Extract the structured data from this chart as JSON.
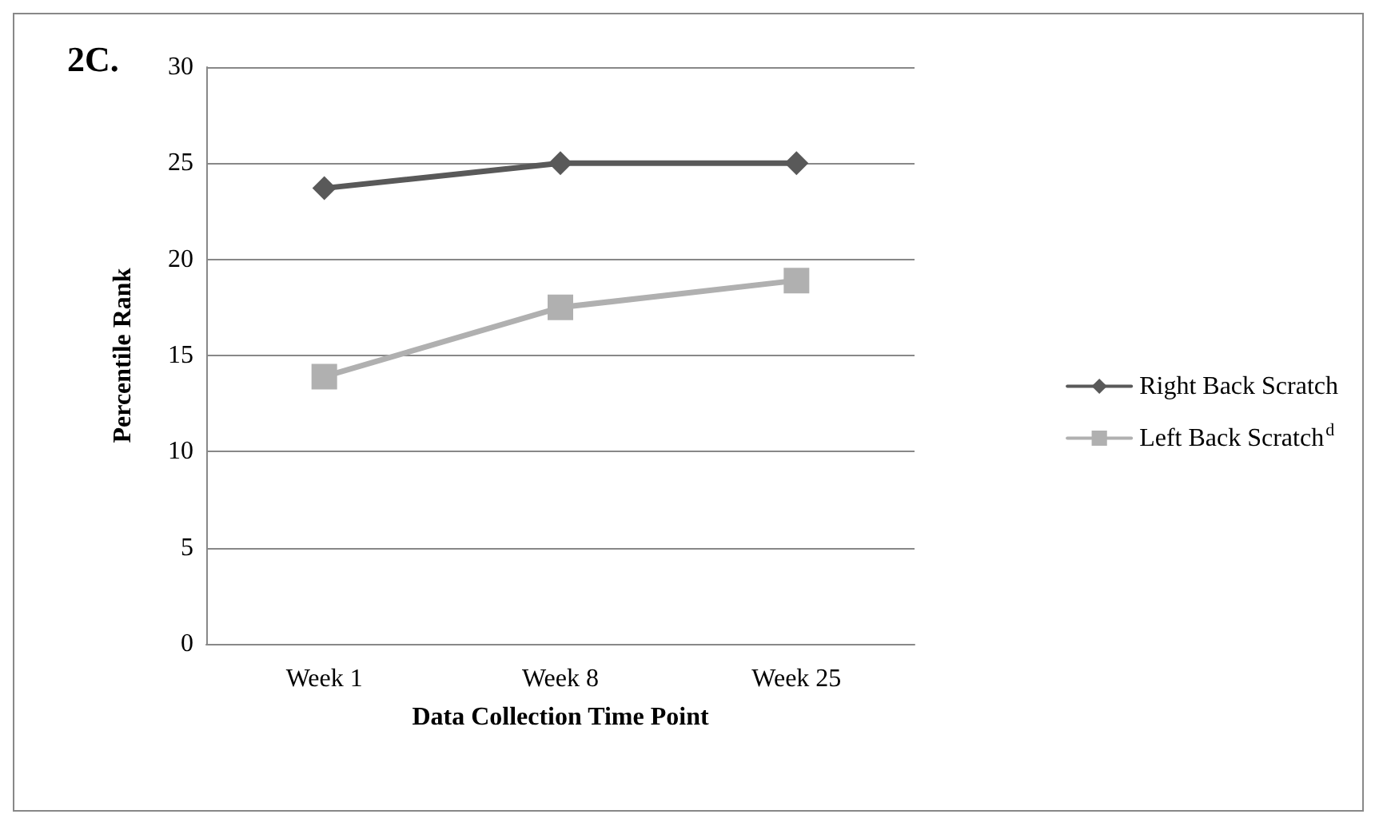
{
  "chart_data": {
    "type": "line",
    "title": "2C.",
    "xlabel": "Data Collection Time Point",
    "ylabel": "Percentile Rank",
    "categories": [
      "Week 1",
      "Week 8",
      "Week 25"
    ],
    "series": [
      {
        "name": "Right Back Scratch",
        "color": "#595959",
        "marker": "diamond",
        "values": [
          23.7,
          25.0,
          25.0
        ]
      },
      {
        "name": "Left Back Scratch$^{d}$",
        "color": "#b0b0b0",
        "marker": "square",
        "values": [
          13.9,
          17.5,
          18.9
        ]
      }
    ],
    "ylim": [
      0,
      30
    ],
    "yticks": [
      0,
      5,
      10,
      15,
      20,
      25,
      30
    ],
    "grid": "y",
    "legend": "right"
  }
}
